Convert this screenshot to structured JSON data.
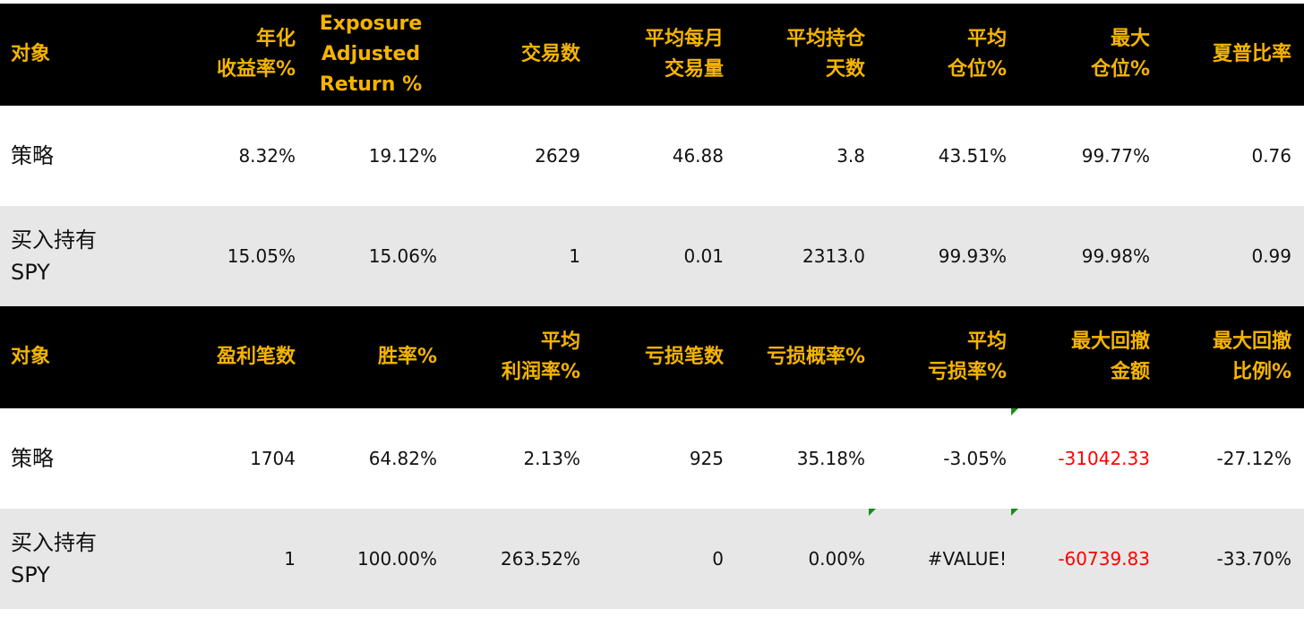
{
  "table1": {
    "headers": [
      "对象",
      "年化\n收益率%",
      "Exposure\nAdjusted\nReturn %",
      "交易数",
      "平均每月\n交易量",
      "平均持仓\n天数",
      "平均\n仓位%",
      "最大\n仓位%",
      "夏普比率"
    ],
    "rows": [
      [
        "策略",
        "8.32%",
        "19.12%",
        "2629",
        "46.88",
        "3.8",
        "43.51%",
        "99.77%",
        "0.76"
      ],
      [
        "买入持有\nSPY",
        "15.05%",
        "15.06%",
        "1",
        "0.01",
        "2313.0",
        "99.93%",
        "99.98%",
        "0.99"
      ]
    ]
  },
  "table2": {
    "headers": [
      "对象",
      "盈利笔数",
      "胜率%",
      "平均\n利润率%",
      "亏损笔数",
      "亏损概率%",
      "平均\n亏损率%",
      "最大回撤\n金额",
      "最大回撤\n比例%"
    ],
    "rows": [
      [
        "策略",
        "1704",
        "64.82%",
        "2.13%",
        "925",
        "35.18%",
        "-3.05%",
        "-31042.33",
        "-27.12%"
      ],
      [
        "买入持有\nSPY",
        "1",
        "100.00%",
        "263.52%",
        "0",
        "0.00%",
        "#VALUE!",
        "-60739.83",
        "-33.70%"
      ]
    ]
  },
  "colors": {
    "header_bg": "#000000",
    "header_text": "#f5b400",
    "row_alt_bg": "#e7e7e7",
    "negative_amount": "#ff0000",
    "cell_marker": "#1d8a1d"
  }
}
